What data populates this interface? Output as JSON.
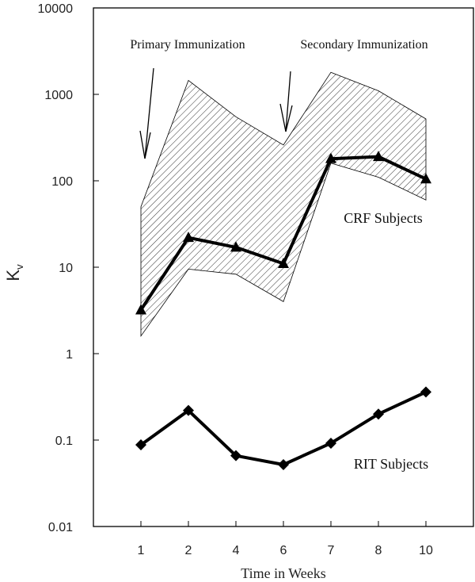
{
  "chart_data": {
    "type": "line",
    "categories": [
      "1",
      "2",
      "4",
      "6",
      "7",
      "8",
      "10"
    ],
    "xlabel": "Time in Weeks",
    "ylabel": "K",
    "ylabel_subscript": "v",
    "yscale": "log",
    "ylim": [
      0.01,
      10000
    ],
    "yticks": [
      {
        "value": 10000,
        "label": "10000"
      },
      {
        "value": 1000,
        "label": "1000"
      },
      {
        "value": 100,
        "label": "100"
      },
      {
        "value": 10,
        "label": "10"
      },
      {
        "value": 1,
        "label": "1"
      },
      {
        "value": 0.1,
        "label": "0.1"
      },
      {
        "value": 0.01,
        "label": "0.01"
      }
    ],
    "series": [
      {
        "name": "CRF Subjects",
        "marker": "triangle",
        "values": [
          3.2,
          22,
          17,
          11,
          180,
          190,
          105
        ]
      },
      {
        "name": "RIT Subjects",
        "marker": "diamond",
        "values": [
          0.088,
          0.22,
          0.066,
          0.052,
          0.092,
          0.2,
          0.36
        ]
      }
    ],
    "band": {
      "name": "CRF range",
      "upper": [
        50,
        1450,
        550,
        260,
        1800,
        1100,
        520
      ],
      "lower": [
        1.6,
        9.5,
        8.3,
        4,
        160,
        110,
        60
      ]
    },
    "annotations": [
      {
        "text": "Primary Immunization",
        "points_to_category": "1"
      },
      {
        "text": "Secondary Immunization",
        "points_to_category": "6"
      }
    ]
  }
}
